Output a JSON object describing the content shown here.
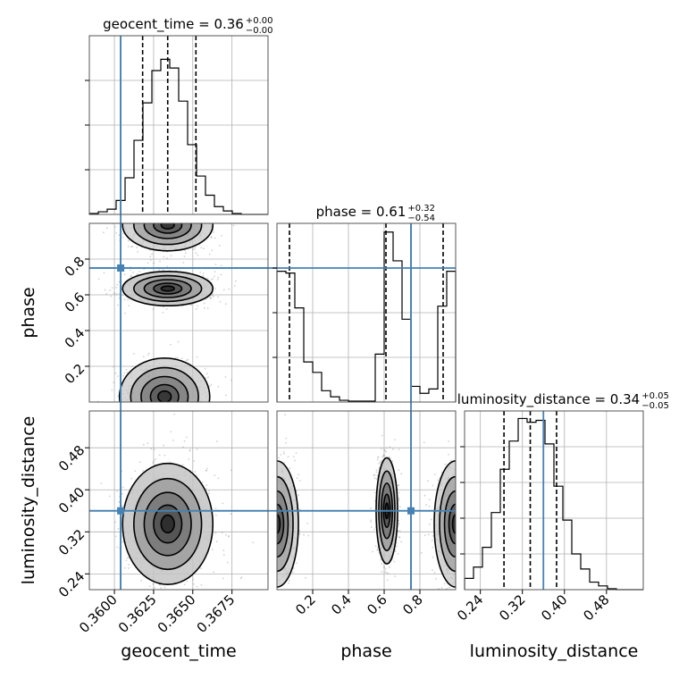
{
  "chart_data": {
    "type": "corner",
    "parameters": [
      {
        "name": "geocent_time",
        "title": "geocent_time = 0.36",
        "median": 0.3634,
        "plus": "+0.00",
        "minus": "−0.00",
        "truth": 0.3604,
        "quantiles": [
          0.3618,
          0.3634,
          0.3652
        ],
        "range": [
          0.3584,
          0.3698
        ],
        "ticks": [
          0.36,
          0.3625,
          0.365,
          0.3675
        ],
        "tick_labels": [
          "0.3600",
          "0.3625",
          "0.3650",
          "0.3675"
        ]
      },
      {
        "name": "phase",
        "title": "phase = 0.61",
        "median": 0.61,
        "plus": "+0.32",
        "minus": "−0.54",
        "truth": 0.75,
        "quantiles": [
          0.07,
          0.61,
          0.93
        ],
        "range": [
          0.0,
          1.0
        ],
        "ticks": [
          0.2,
          0.4,
          0.6,
          0.8
        ],
        "tick_labels": [
          "0.2",
          "0.4",
          "0.6",
          "0.8"
        ]
      },
      {
        "name": "luminosity_distance",
        "title": "luminosity_distance = 0.34",
        "median": 0.335,
        "plus": "+0.05",
        "minus": "−0.05",
        "truth": 0.36,
        "quantiles": [
          0.285,
          0.335,
          0.385
        ],
        "range": [
          0.21,
          0.55
        ],
        "ticks": [
          0.24,
          0.32,
          0.4,
          0.48
        ],
        "tick_labels": [
          "0.24",
          "0.32",
          "0.40",
          "0.48"
        ]
      }
    ],
    "histograms": {
      "geocent_time": {
        "bin_edges": [
          0.3584,
          0.35897,
          0.35954,
          0.36011,
          0.36068,
          0.36125,
          0.36182,
          0.36239,
          0.36296,
          0.36353,
          0.3641,
          0.36467,
          0.36524,
          0.36581,
          0.36638,
          0.36695,
          0.36752,
          0.36809,
          0.36866,
          0.36923,
          0.3698
        ],
        "counts": [
          1,
          3,
          6,
          16,
          42,
          85,
          128,
          165,
          178,
          168,
          130,
          80,
          44,
          22,
          9,
          4,
          1,
          0,
          0,
          0
        ],
        "ylim": [
          0,
          205
        ],
        "ytick_count": 3
      },
      "phase": {
        "bin_edges": [
          0.0,
          0.05,
          0.1,
          0.15,
          0.2,
          0.25,
          0.3,
          0.35,
          0.4,
          0.45,
          0.5,
          0.55,
          0.6,
          0.65,
          0.7,
          0.75,
          0.8,
          0.85,
          0.9,
          0.95,
          1.0
        ],
        "counts": [
          150,
          148,
          108,
          46,
          34,
          13,
          6,
          2,
          1,
          1,
          1,
          55,
          195,
          162,
          95,
          18,
          10,
          15,
          110,
          150
        ],
        "ylim": [
          0,
          205
        ],
        "ytick_count": 3
      },
      "luminosity_distance": {
        "bin_edges": [
          0.21,
          0.227,
          0.244,
          0.261,
          0.278,
          0.295,
          0.312,
          0.329,
          0.346,
          0.363,
          0.38,
          0.397,
          0.414,
          0.431,
          0.448,
          0.465,
          0.482,
          0.499,
          0.516,
          0.533,
          0.55
        ],
        "counts": [
          12,
          24,
          45,
          82,
          128,
          158,
          182,
          178,
          180,
          155,
          110,
          74,
          38,
          22,
          8,
          4,
          1,
          0,
          0,
          0
        ],
        "ylim": [
          0,
          190
        ],
        "ytick_count": 4
      }
    },
    "pair_panels": [
      {
        "x": "geocent_time",
        "y": "phase"
      },
      {
        "x": "geocent_time",
        "y": "luminosity_distance"
      },
      {
        "x": "phase",
        "y": "luminosity_distance"
      }
    ],
    "density_modes": [
      {
        "x": "geocent_time",
        "y": "phase",
        "mu": [
          0.3634,
          0.635
        ],
        "sigma": [
          0.0012,
          0.04
        ],
        "weight": 1.0
      },
      {
        "x": "geocent_time",
        "y": "phase",
        "mu": [
          0.3632,
          0.03
        ],
        "sigma": [
          0.0012,
          0.09
        ],
        "weight": 0.85
      },
      {
        "x": "geocent_time",
        "y": "phase",
        "mu": [
          0.3634,
          0.99
        ],
        "sigma": [
          0.0012,
          0.06
        ],
        "weight": 0.8
      },
      {
        "x": "geocent_time",
        "y": "luminosity_distance",
        "mu": [
          0.3634,
          0.335
        ],
        "sigma": [
          0.0012,
          0.048
        ],
        "weight": 1.0
      },
      {
        "x": "phase",
        "y": "luminosity_distance",
        "mu": [
          0.615,
          0.36
        ],
        "sigma": [
          0.025,
          0.042
        ],
        "weight": 1.0
      },
      {
        "x": "phase",
        "y": "luminosity_distance",
        "mu": [
          0.0,
          0.335
        ],
        "sigma": [
          0.05,
          0.05
        ],
        "weight": 0.85
      },
      {
        "x": "phase",
        "y": "luminosity_distance",
        "mu": [
          1.0,
          0.335
        ],
        "sigma": [
          0.05,
          0.05
        ],
        "weight": 0.85
      }
    ],
    "grid": true,
    "colors": {
      "truth": "#4682b4",
      "hist": "#000000",
      "quantile": "#000000",
      "points": "#9a9a9a",
      "grid": "#b0b0b0"
    }
  }
}
